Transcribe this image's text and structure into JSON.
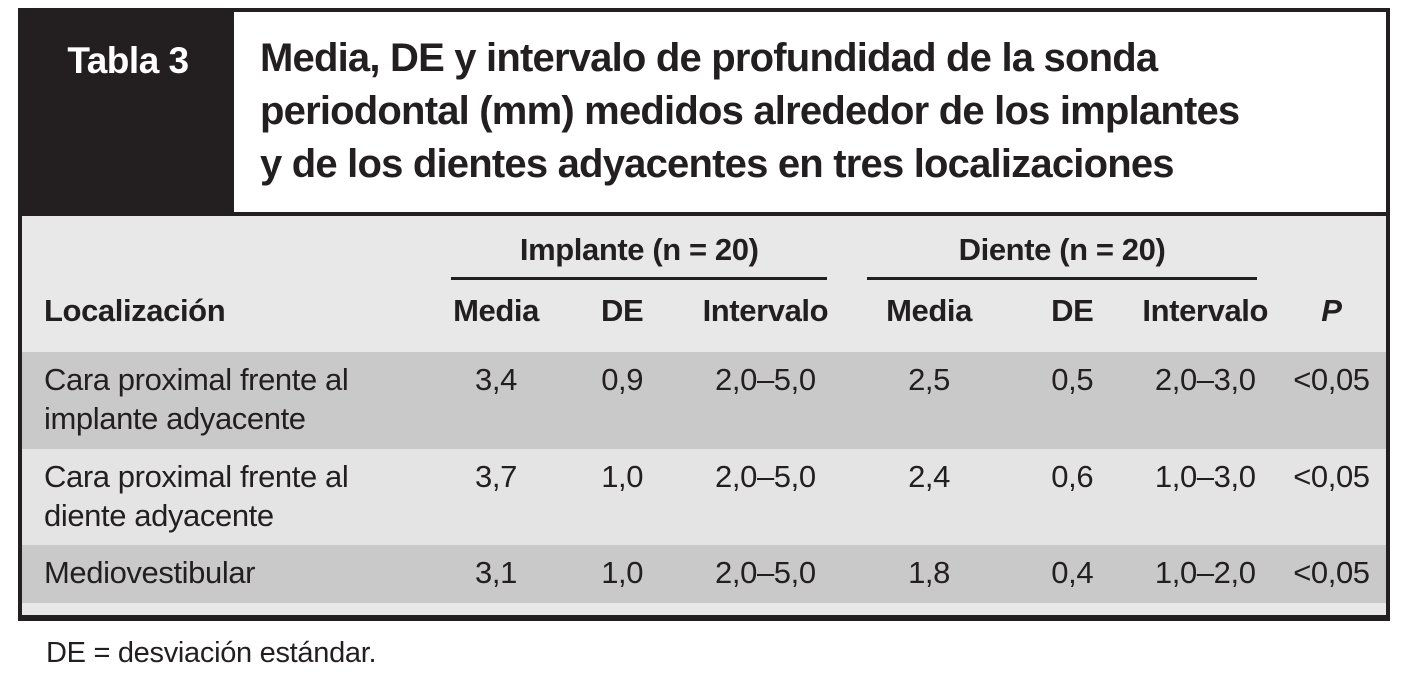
{
  "figure": {
    "label": "Tabla 3",
    "title_lines": [
      "Media, DE y intervalo de profundidad de la sonda",
      "periodontal (mm) medidos alrededor de los implantes",
      "y de los dientes adyacentes en tres localizaciones"
    ],
    "footnote": "DE = desviación estándar."
  },
  "table": {
    "row_header": "Localización",
    "groups": [
      {
        "label": "Implante (n = 20)"
      },
      {
        "label": "Diente (n = 20)"
      }
    ],
    "subheaders": [
      "Media",
      "DE",
      "Intervalo",
      "Media",
      "DE",
      "Intervalo"
    ],
    "p_header": "P",
    "rows": [
      {
        "location": "Cara proximal frente al implante adyacente",
        "values": [
          "3,4",
          "0,9",
          "2,0–5,0",
          "2,5",
          "0,5",
          "2,0–3,0",
          "<0,05"
        ]
      },
      {
        "location": "Cara proximal frente al diente adyacente",
        "values": [
          "3,7",
          "1,0",
          "2,0–5,0",
          "2,4",
          "0,6",
          "1,0–3,0",
          "<0,05"
        ]
      },
      {
        "location": "Mediovestibular",
        "values": [
          "3,1",
          "1,0",
          "2,0–5,0",
          "1,8",
          "0,4",
          "1,0–2,0",
          "<0,05"
        ]
      }
    ]
  },
  "colors": {
    "ink": "#231f20",
    "header_bg": "#e8e8e9",
    "row_dark": "#c9c9ca",
    "row_light": "#e4e4e5"
  }
}
